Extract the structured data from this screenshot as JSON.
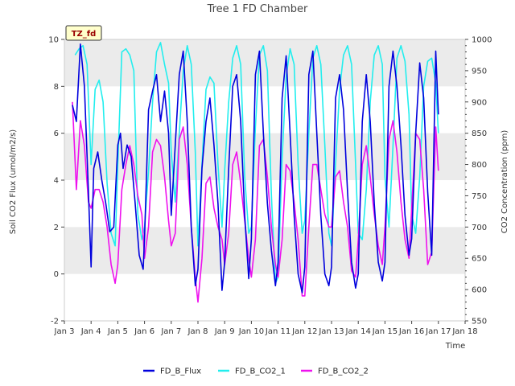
{
  "chart_data": {
    "type": "line",
    "title": "Tree 1 FD Chamber",
    "badge": "TZ_fd",
    "xlabel": "Time",
    "ylabel_left": "Soil CO2 Flux (umol/m2/s)",
    "ylabel_right": "CO2 Concentration (ppm)",
    "x_tick_labels": [
      "Jan 3",
      "Jan 4",
      "Jan 5",
      "Jan 6",
      "Jan 7",
      "Jan 8",
      "Jan 9",
      "Jan 10",
      "Jan 11",
      "Jan 12",
      "Jan 13",
      "Jan 14",
      "Jan 15",
      "Jan 16",
      "Jan 17",
      "Jan 18"
    ],
    "xlim": [
      3,
      18
    ],
    "ylim_left": [
      -2,
      10
    ],
    "ylim_right": [
      550,
      1000
    ],
    "y_ticks_left": [
      "-2",
      "0",
      "2",
      "4",
      "6",
      "8",
      "10"
    ],
    "y_ticks_right": [
      "550",
      "600",
      "650",
      "700",
      "750",
      "800",
      "850",
      "900",
      "950",
      "1000"
    ],
    "colors": {
      "FD_B_Flux": "#0000dd",
      "FD_B_CO2_1": "#22eeee",
      "FD_B_CO2_2": "#ee11ee",
      "band": "#ebebeb"
    },
    "legend": [
      "FD_B_Flux",
      "FD_B_CO2_1",
      "FD_B_CO2_2"
    ],
    "series": [
      {
        "name": "FD_B_Flux",
        "axis": "left",
        "x": [
          3.3,
          3.45,
          3.6,
          3.75,
          3.9,
          4.0,
          4.1,
          4.25,
          4.4,
          4.55,
          4.7,
          4.85,
          5.0,
          5.1,
          5.2,
          5.35,
          5.5,
          5.65,
          5.8,
          5.95,
          6.0,
          6.15,
          6.3,
          6.45,
          6.6,
          6.75,
          6.9,
          7.0,
          7.15,
          7.3,
          7.45,
          7.6,
          7.75,
          7.9,
          8.0,
          8.15,
          8.3,
          8.45,
          8.6,
          8.75,
          8.9,
          9.0,
          9.15,
          9.3,
          9.45,
          9.6,
          9.75,
          9.9,
          10.0,
          10.15,
          10.3,
          10.45,
          10.6,
          10.75,
          10.9,
          11.0,
          11.15,
          11.3,
          11.45,
          11.6,
          11.75,
          11.9,
          12.0,
          12.15,
          12.3,
          12.45,
          12.6,
          12.75,
          12.9,
          13.0,
          13.15,
          13.3,
          13.45,
          13.6,
          13.75,
          13.9,
          14.0,
          14.15,
          14.3,
          14.45,
          14.6,
          14.75,
          14.9,
          15.0,
          15.15,
          15.3,
          15.45,
          15.6,
          15.75,
          15.9,
          16.0,
          16.15,
          16.3,
          16.45,
          16.6,
          16.75,
          16.9,
          17.0
        ],
        "y": [
          7.2,
          6.5,
          9.8,
          8.0,
          3.5,
          0.3,
          4.5,
          5.2,
          4.0,
          3.0,
          1.8,
          2.0,
          5.5,
          6.0,
          4.5,
          5.5,
          5.0,
          3.0,
          0.8,
          0.2,
          1.5,
          7.0,
          7.8,
          8.5,
          6.5,
          7.8,
          6.0,
          2.5,
          5.5,
          8.5,
          9.5,
          6.5,
          2.0,
          -0.5,
          0.2,
          4.5,
          6.5,
          7.5,
          5.5,
          3.0,
          -0.7,
          0.5,
          4.5,
          8.0,
          8.5,
          6.5,
          2.5,
          -0.2,
          1.5,
          8.5,
          9.5,
          6.0,
          3.0,
          1.0,
          -0.5,
          0.5,
          7.5,
          9.3,
          6.0,
          2.5,
          0.0,
          -0.8,
          0.3,
          8.5,
          9.5,
          6.0,
          2.5,
          0.0,
          -0.5,
          0.3,
          7.5,
          8.5,
          7.0,
          3.5,
          0.5,
          -0.6,
          0.0,
          6.5,
          8.5,
          6.5,
          3.0,
          0.5,
          -0.3,
          0.5,
          8.0,
          9.5,
          8.0,
          5.5,
          2.5,
          0.8,
          1.5,
          6.0,
          9.0,
          7.5,
          3.5,
          0.8,
          9.5,
          6.8
        ]
      },
      {
        "name": "FD_B_CO2_1",
        "axis": "right",
        "x": [
          3.4,
          3.55,
          3.7,
          3.85,
          4.0,
          4.15,
          4.3,
          4.45,
          4.6,
          4.75,
          4.9,
          5.0,
          5.15,
          5.3,
          5.45,
          5.6,
          5.75,
          5.9,
          6.0,
          6.15,
          6.3,
          6.45,
          6.6,
          6.75,
          6.9,
          7.0,
          7.15,
          7.3,
          7.45,
          7.6,
          7.75,
          7.9,
          8.0,
          8.15,
          8.3,
          8.45,
          8.6,
          8.75,
          8.9,
          9.0,
          9.15,
          9.3,
          9.45,
          9.6,
          9.75,
          9.9,
          10.0,
          10.15,
          10.3,
          10.45,
          10.6,
          10.75,
          10.9,
          11.0,
          11.15,
          11.3,
          11.45,
          11.6,
          11.75,
          11.9,
          12.0,
          12.15,
          12.3,
          12.45,
          12.6,
          12.75,
          12.9,
          13.0,
          13.15,
          13.3,
          13.45,
          13.6,
          13.75,
          13.9,
          14.0,
          14.15,
          14.3,
          14.45,
          14.6,
          14.75,
          14.9,
          15.0,
          15.15,
          15.3,
          15.45,
          15.6,
          15.75,
          15.9,
          16.0,
          16.15,
          16.3,
          16.45,
          16.6,
          16.75,
          16.9,
          17.0
        ],
        "y": [
          975,
          985,
          990,
          960,
          800,
          920,
          935,
          900,
          770,
          690,
          670,
          800,
          980,
          985,
          975,
          950,
          720,
          680,
          700,
          790,
          900,
          980,
          995,
          960,
          930,
          820,
          740,
          850,
          950,
          990,
          960,
          820,
          670,
          800,
          920,
          940,
          930,
          800,
          700,
          790,
          900,
          970,
          990,
          960,
          780,
          690,
          700,
          860,
          975,
          990,
          950,
          750,
          610,
          620,
          810,
          940,
          985,
          960,
          800,
          690,
          710,
          850,
          970,
          990,
          960,
          830,
          690,
          670,
          800,
          920,
          975,
          990,
          960,
          800,
          690,
          680,
          760,
          900,
          975,
          990,
          960,
          780,
          700,
          830,
          970,
          990,
          965,
          880,
          720,
          690,
          780,
          925,
          965,
          970,
          930,
          850
        ]
      },
      {
        "name": "FD_B_CO2_2",
        "axis": "right",
        "x": [
          3.3,
          3.45,
          3.6,
          3.75,
          3.9,
          4.0,
          4.15,
          4.3,
          4.45,
          4.6,
          4.75,
          4.9,
          5.0,
          5.15,
          5.3,
          5.45,
          5.6,
          5.75,
          5.9,
          6.0,
          6.15,
          6.3,
          6.45,
          6.6,
          6.75,
          6.9,
          7.0,
          7.15,
          7.3,
          7.45,
          7.6,
          7.75,
          7.9,
          8.0,
          8.15,
          8.3,
          8.45,
          8.6,
          8.75,
          8.9,
          9.0,
          9.15,
          9.3,
          9.45,
          9.6,
          9.75,
          9.9,
          10.0,
          10.15,
          10.3,
          10.45,
          10.6,
          10.75,
          10.9,
          11.0,
          11.15,
          11.3,
          11.45,
          11.6,
          11.75,
          11.9,
          12.0,
          12.15,
          12.3,
          12.45,
          12.6,
          12.75,
          12.9,
          13.0,
          13.15,
          13.3,
          13.45,
          13.6,
          13.75,
          13.9,
          14.0,
          14.15,
          14.3,
          14.45,
          14.6,
          14.75,
          14.9,
          15.0,
          15.15,
          15.3,
          15.45,
          15.6,
          15.75,
          15.9,
          16.0,
          16.15,
          16.3,
          16.45,
          16.6,
          16.75,
          16.9,
          17.0
        ],
        "y": [
          900,
          760,
          870,
          830,
          740,
          730,
          760,
          760,
          740,
          700,
          640,
          610,
          640,
          760,
          800,
          830,
          800,
          750,
          720,
          650,
          700,
          820,
          840,
          830,
          780,
          710,
          670,
          690,
          840,
          860,
          800,
          700,
          620,
          580,
          650,
          770,
          780,
          730,
          700,
          680,
          640,
          690,
          800,
          820,
          770,
          710,
          650,
          620,
          680,
          830,
          840,
          780,
          700,
          640,
          620,
          680,
          800,
          790,
          740,
          680,
          590,
          590,
          700,
          800,
          800,
          760,
          720,
          700,
          700,
          780,
          790,
          740,
          700,
          630,
          620,
          680,
          800,
          830,
          780,
          720,
          670,
          640,
          700,
          840,
          870,
          820,
          740,
          680,
          650,
          730,
          850,
          840,
          760,
          640,
          660,
          860,
          790
        ]
      }
    ]
  }
}
